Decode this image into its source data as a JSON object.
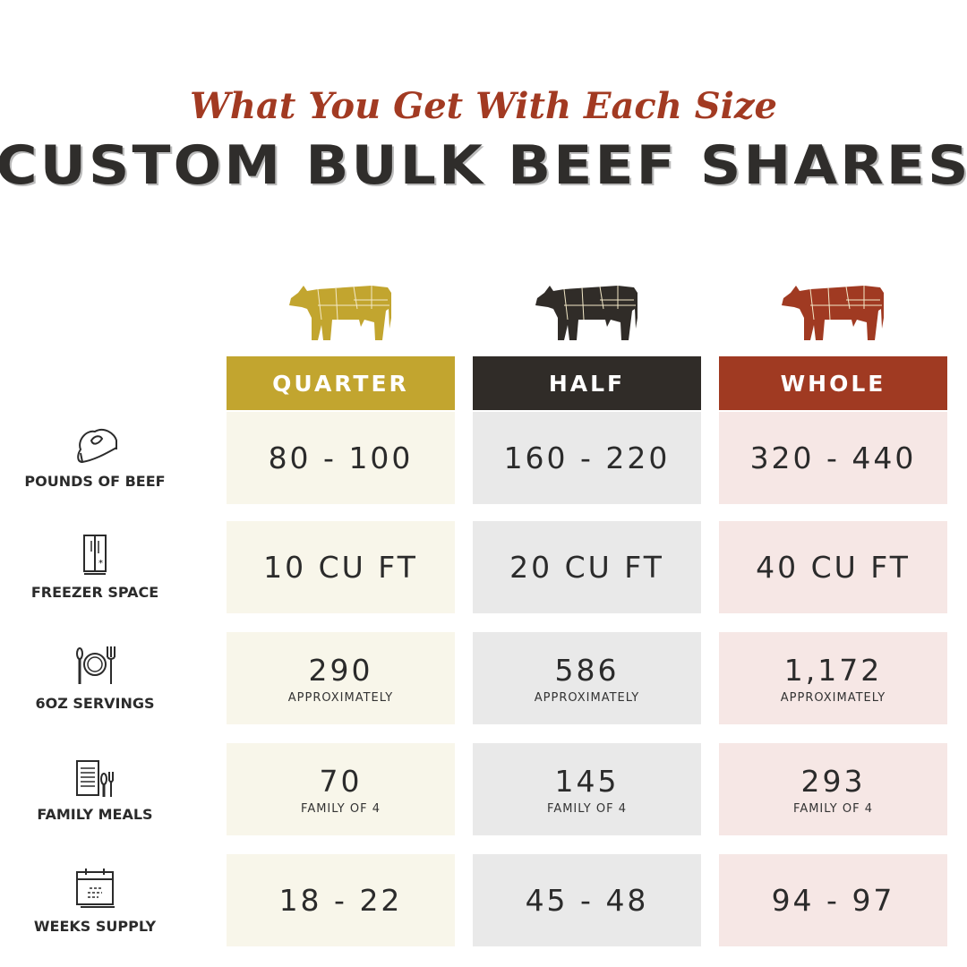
{
  "header": {
    "subtitle": "What You Get With Each Size",
    "title": "CUSTOM BULK BEEF SHARES"
  },
  "colors": {
    "quarter": "#c2a52f",
    "half": "#302c28",
    "whole": "#a03a22",
    "quarter_cell": "#f8f6ea",
    "half_cell": "#e9e9e9",
    "whole_cell": "#f6e7e5",
    "title_red": "#a23a22"
  },
  "columns": [
    {
      "label": "QUARTER",
      "icon": "cow-icon"
    },
    {
      "label": "HALF",
      "icon": "cow-icon"
    },
    {
      "label": "WHOLE",
      "icon": "cow-icon"
    }
  ],
  "rows": [
    {
      "label": "POUNDS OF BEEF",
      "icon": "steak-icon",
      "values": [
        {
          "main": "80 - 100"
        },
        {
          "main": "160 - 220"
        },
        {
          "main": "320 - 440"
        }
      ]
    },
    {
      "label": "FREEZER SPACE",
      "icon": "freezer-icon",
      "values": [
        {
          "main": "10 CU FT"
        },
        {
          "main": "20 CU FT"
        },
        {
          "main": "40 CU FT"
        }
      ]
    },
    {
      "label": "6OZ SERVINGS",
      "icon": "plate-cutlery-icon",
      "values": [
        {
          "main": "290",
          "note": "APPROXIMATELY"
        },
        {
          "main": "586",
          "note": "APPROXIMATELY"
        },
        {
          "main": "1,172",
          "note": "APPROXIMATELY"
        }
      ]
    },
    {
      "label": "FAMILY MEALS",
      "icon": "menu-cutlery-icon",
      "values": [
        {
          "main": "70",
          "note": "FAMILY OF 4"
        },
        {
          "main": "145",
          "note": "FAMILY OF 4"
        },
        {
          "main": "293",
          "note": "FAMILY OF 4"
        }
      ]
    },
    {
      "label": "WEEKS SUPPLY",
      "icon": "calendar-icon",
      "values": [
        {
          "main": "18 - 22"
        },
        {
          "main": "45 - 48"
        },
        {
          "main": "94 - 97"
        }
      ]
    }
  ]
}
